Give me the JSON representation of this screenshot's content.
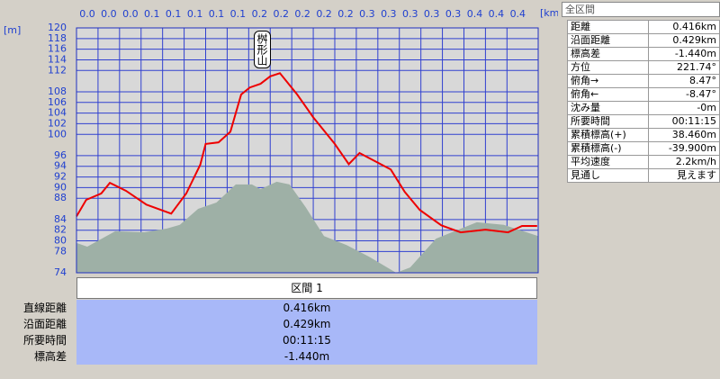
{
  "chart_data": {
    "type": "line",
    "x_unit": "[km]",
    "y_unit": "[m]",
    "annotation": "桝形山",
    "xlim": [
      0,
      0.429
    ],
    "ylim": [
      74,
      120
    ],
    "grid": true,
    "xticks": [
      {
        "value": 0,
        "label": "0.0"
      },
      {
        "value": 0.02,
        "label": "0.0"
      },
      {
        "value": 0.04,
        "label": "0.0"
      },
      {
        "value": 0.06,
        "label": "0.1"
      },
      {
        "value": 0.08,
        "label": "0.1"
      },
      {
        "value": 0.1,
        "label": "0.1"
      },
      {
        "value": 0.12,
        "label": "0.1"
      },
      {
        "value": 0.14,
        "label": "0.1"
      },
      {
        "value": 0.16,
        "label": "0.2"
      },
      {
        "value": 0.18,
        "label": "0.2"
      },
      {
        "value": 0.2,
        "label": "0.2"
      },
      {
        "value": 0.22,
        "label": "0.2"
      },
      {
        "value": 0.24,
        "label": "0.2"
      },
      {
        "value": 0.26,
        "label": "0.3"
      },
      {
        "value": 0.28,
        "label": "0.3"
      },
      {
        "value": 0.3,
        "label": "0.3"
      },
      {
        "value": 0.32,
        "label": "0.3"
      },
      {
        "value": 0.34,
        "label": "0.3"
      },
      {
        "value": 0.36,
        "label": "0.4"
      },
      {
        "value": 0.38,
        "label": "0.4"
      },
      {
        "value": 0.4,
        "label": "0.4"
      }
    ],
    "yticks": [
      74,
      78,
      80,
      82,
      84,
      88,
      90,
      92,
      94,
      96,
      100,
      102,
      104,
      106,
      108,
      112,
      114,
      116,
      118,
      120
    ],
    "series": [
      {
        "kind": "area",
        "color": "#9eb0a6",
        "x": [
          0,
          0.01,
          0.036,
          0.063,
          0.084,
          0.096,
          0.113,
          0.13,
          0.148,
          0.163,
          0.171,
          0.186,
          0.198,
          0.213,
          0.23,
          0.251,
          0.272,
          0.297,
          0.31,
          0.334,
          0.372,
          0.397,
          0.429
        ],
        "values": [
          79.6,
          78.9,
          81.8,
          81.6,
          82.3,
          83,
          86,
          87.2,
          90.6,
          90.6,
          89.7,
          91.1,
          90.6,
          86.3,
          80.9,
          79.2,
          77,
          74,
          75,
          80.4,
          83.5,
          83,
          80.9
        ]
      },
      {
        "kind": "line",
        "color": "#ee0000",
        "x": [
          0,
          0.009,
          0.023,
          0.031,
          0.046,
          0.065,
          0.088,
          0.102,
          0.115,
          0.12,
          0.132,
          0.143,
          0.153,
          0.161,
          0.171,
          0.18,
          0.189,
          0.205,
          0.22,
          0.24,
          0.253,
          0.263,
          0.292,
          0.305,
          0.319,
          0.339,
          0.357,
          0.38,
          0.401,
          0.414,
          0.428
        ],
        "values": [
          84.6,
          87.7,
          88.9,
          90.9,
          89.4,
          86.8,
          85.1,
          88.9,
          94.3,
          98.2,
          98.5,
          100.5,
          107.5,
          108.8,
          109.5,
          110.9,
          111.5,
          107.5,
          103.2,
          98.2,
          94.4,
          96.5,
          93.4,
          89.2,
          85.8,
          82.9,
          81.6,
          82.1,
          81.6,
          82.8,
          82.8
        ]
      }
    ]
  },
  "summary": {
    "title": "全区間",
    "rows": [
      [
        "距離",
        "0.416km"
      ],
      [
        "沿面距離",
        "0.429km"
      ],
      [
        "標高差",
        "-1.440m"
      ],
      [
        "方位",
        "221.74°"
      ],
      [
        "俯角→",
        "8.47°"
      ],
      [
        "俯角←",
        "-8.47°"
      ],
      [
        "沈み量",
        "-0m"
      ],
      [
        "所要時間",
        "00:11:15"
      ],
      [
        "累積標高(+)",
        "38.460m"
      ],
      [
        "累積標高(-)",
        "-39.900m"
      ],
      [
        "平均速度",
        "2.2km/h"
      ],
      [
        "見通し",
        "見えます"
      ]
    ]
  },
  "segment": {
    "title": "区間 1",
    "rows": [
      [
        "直線距離",
        "0.416km"
      ],
      [
        "沿面距離",
        "0.429km"
      ],
      [
        "所要時間",
        "00:11:15"
      ],
      [
        "標高差",
        "-1.440m"
      ]
    ]
  }
}
